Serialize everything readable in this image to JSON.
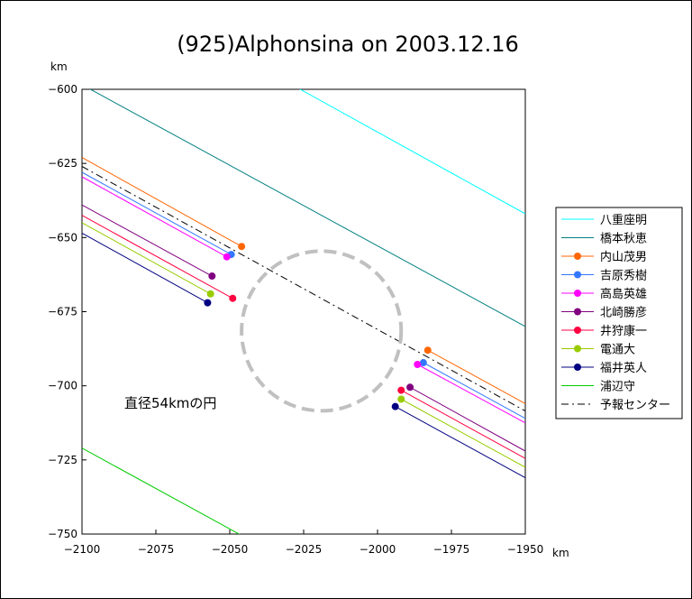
{
  "chart_data": {
    "type": "line",
    "title": "(925)Alphonsina on 2003.12.16",
    "xlabel": "km",
    "ylabel": "km",
    "xlim": [
      -2100,
      -1950
    ],
    "ylim": [
      -750,
      -600
    ],
    "xticks": [
      -2100,
      -2075,
      -2050,
      -2025,
      -2000,
      -1975,
      -1950
    ],
    "yticks": [
      -600,
      -625,
      -650,
      -675,
      -700,
      -725,
      -750
    ],
    "xtick_labels": [
      "−2100",
      "−2075",
      "−2050",
      "−2025",
      "−2000",
      "−1975",
      "−1950"
    ],
    "ytick_labels": [
      "−600",
      "−625",
      "−650",
      "−675",
      "−700",
      "−725",
      "−750"
    ],
    "grid": false,
    "legend_position": "right",
    "circle": {
      "label": "直径54kmの円",
      "center": [
        -2019,
        -681.5
      ],
      "radius": 27,
      "color": "#c0c0c0"
    },
    "series": [
      {
        "name": "八重座明",
        "color": "#00ffff",
        "marker": false,
        "segments": [
          {
            "x": [
              -2028,
              -1950
            ],
            "y": [
              -599,
              -642
            ]
          }
        ]
      },
      {
        "name": "橋本秋恵",
        "color": "#008080",
        "marker": false,
        "segments": [
          {
            "x": [
              -2099,
              -1950
            ],
            "y": [
              -599,
              -680
            ]
          }
        ]
      },
      {
        "name": "内山茂男",
        "color": "#ff6600",
        "marker": true,
        "segments": [
          {
            "x": [
              -2100,
              -2046
            ],
            "y": [
              -623,
              -653
            ]
          },
          {
            "x": [
              -1983,
              -1950
            ],
            "y": [
              -688,
              -706
            ]
          }
        ]
      },
      {
        "name": "吉原秀樹",
        "color": "#3377ff",
        "marker": true,
        "segments": [
          {
            "x": [
              -2100,
              -2049.5
            ],
            "y": [
              -628,
              -655.7
            ]
          },
          {
            "x": [
              -1984.5,
              -1950
            ],
            "y": [
              -692.2,
              -711
            ]
          }
        ]
      },
      {
        "name": "高島英雄",
        "color": "#ff00ff",
        "marker": true,
        "segments": [
          {
            "x": [
              -2100,
              -2051
            ],
            "y": [
              -629.5,
              -656.5
            ]
          },
          {
            "x": [
              -1986.5,
              -1950
            ],
            "y": [
              -692.8,
              -712.5
            ]
          }
        ]
      },
      {
        "name": "北崎勝彦",
        "color": "#800080",
        "marker": true,
        "segments": [
          {
            "x": [
              -2100,
              -2056
            ],
            "y": [
              -639,
              -663
            ]
          },
          {
            "x": [
              -1989,
              -1950
            ],
            "y": [
              -700.5,
              -722
            ]
          }
        ]
      },
      {
        "name": "井狩康一",
        "color": "#ff0040",
        "marker": true,
        "segments": [
          {
            "x": [
              -2100,
              -2049
            ],
            "y": [
              -642.5,
              -670.5
            ]
          },
          {
            "x": [
              -1992,
              -1950
            ],
            "y": [
              -701.5,
              -724.5
            ]
          }
        ]
      },
      {
        "name": "電通大",
        "color": "#99cc00",
        "marker": true,
        "segments": [
          {
            "x": [
              -2100,
              -2056.5
            ],
            "y": [
              -645,
              -669
            ]
          },
          {
            "x": [
              -1992,
              -1950
            ],
            "y": [
              -704.5,
              -727.5
            ]
          }
        ]
      },
      {
        "name": "福井英人",
        "color": "#000080",
        "marker": true,
        "segments": [
          {
            "x": [
              -2100,
              -2057.5
            ],
            "y": [
              -648.5,
              -672
            ]
          },
          {
            "x": [
              -1994,
              -1950
            ],
            "y": [
              -707,
              -731
            ]
          }
        ]
      },
      {
        "name": "浦辺守",
        "color": "#00cc00",
        "marker": false,
        "segments": [
          {
            "x": [
              -2100,
              -2045
            ],
            "y": [
              -721,
              -751
            ]
          }
        ]
      },
      {
        "name": "予報センター",
        "color": "#000000",
        "marker": false,
        "dash": true,
        "segments": [
          {
            "x": [
              -2100,
              -1950
            ],
            "y": [
              -626,
              -708.5
            ]
          }
        ]
      }
    ]
  }
}
